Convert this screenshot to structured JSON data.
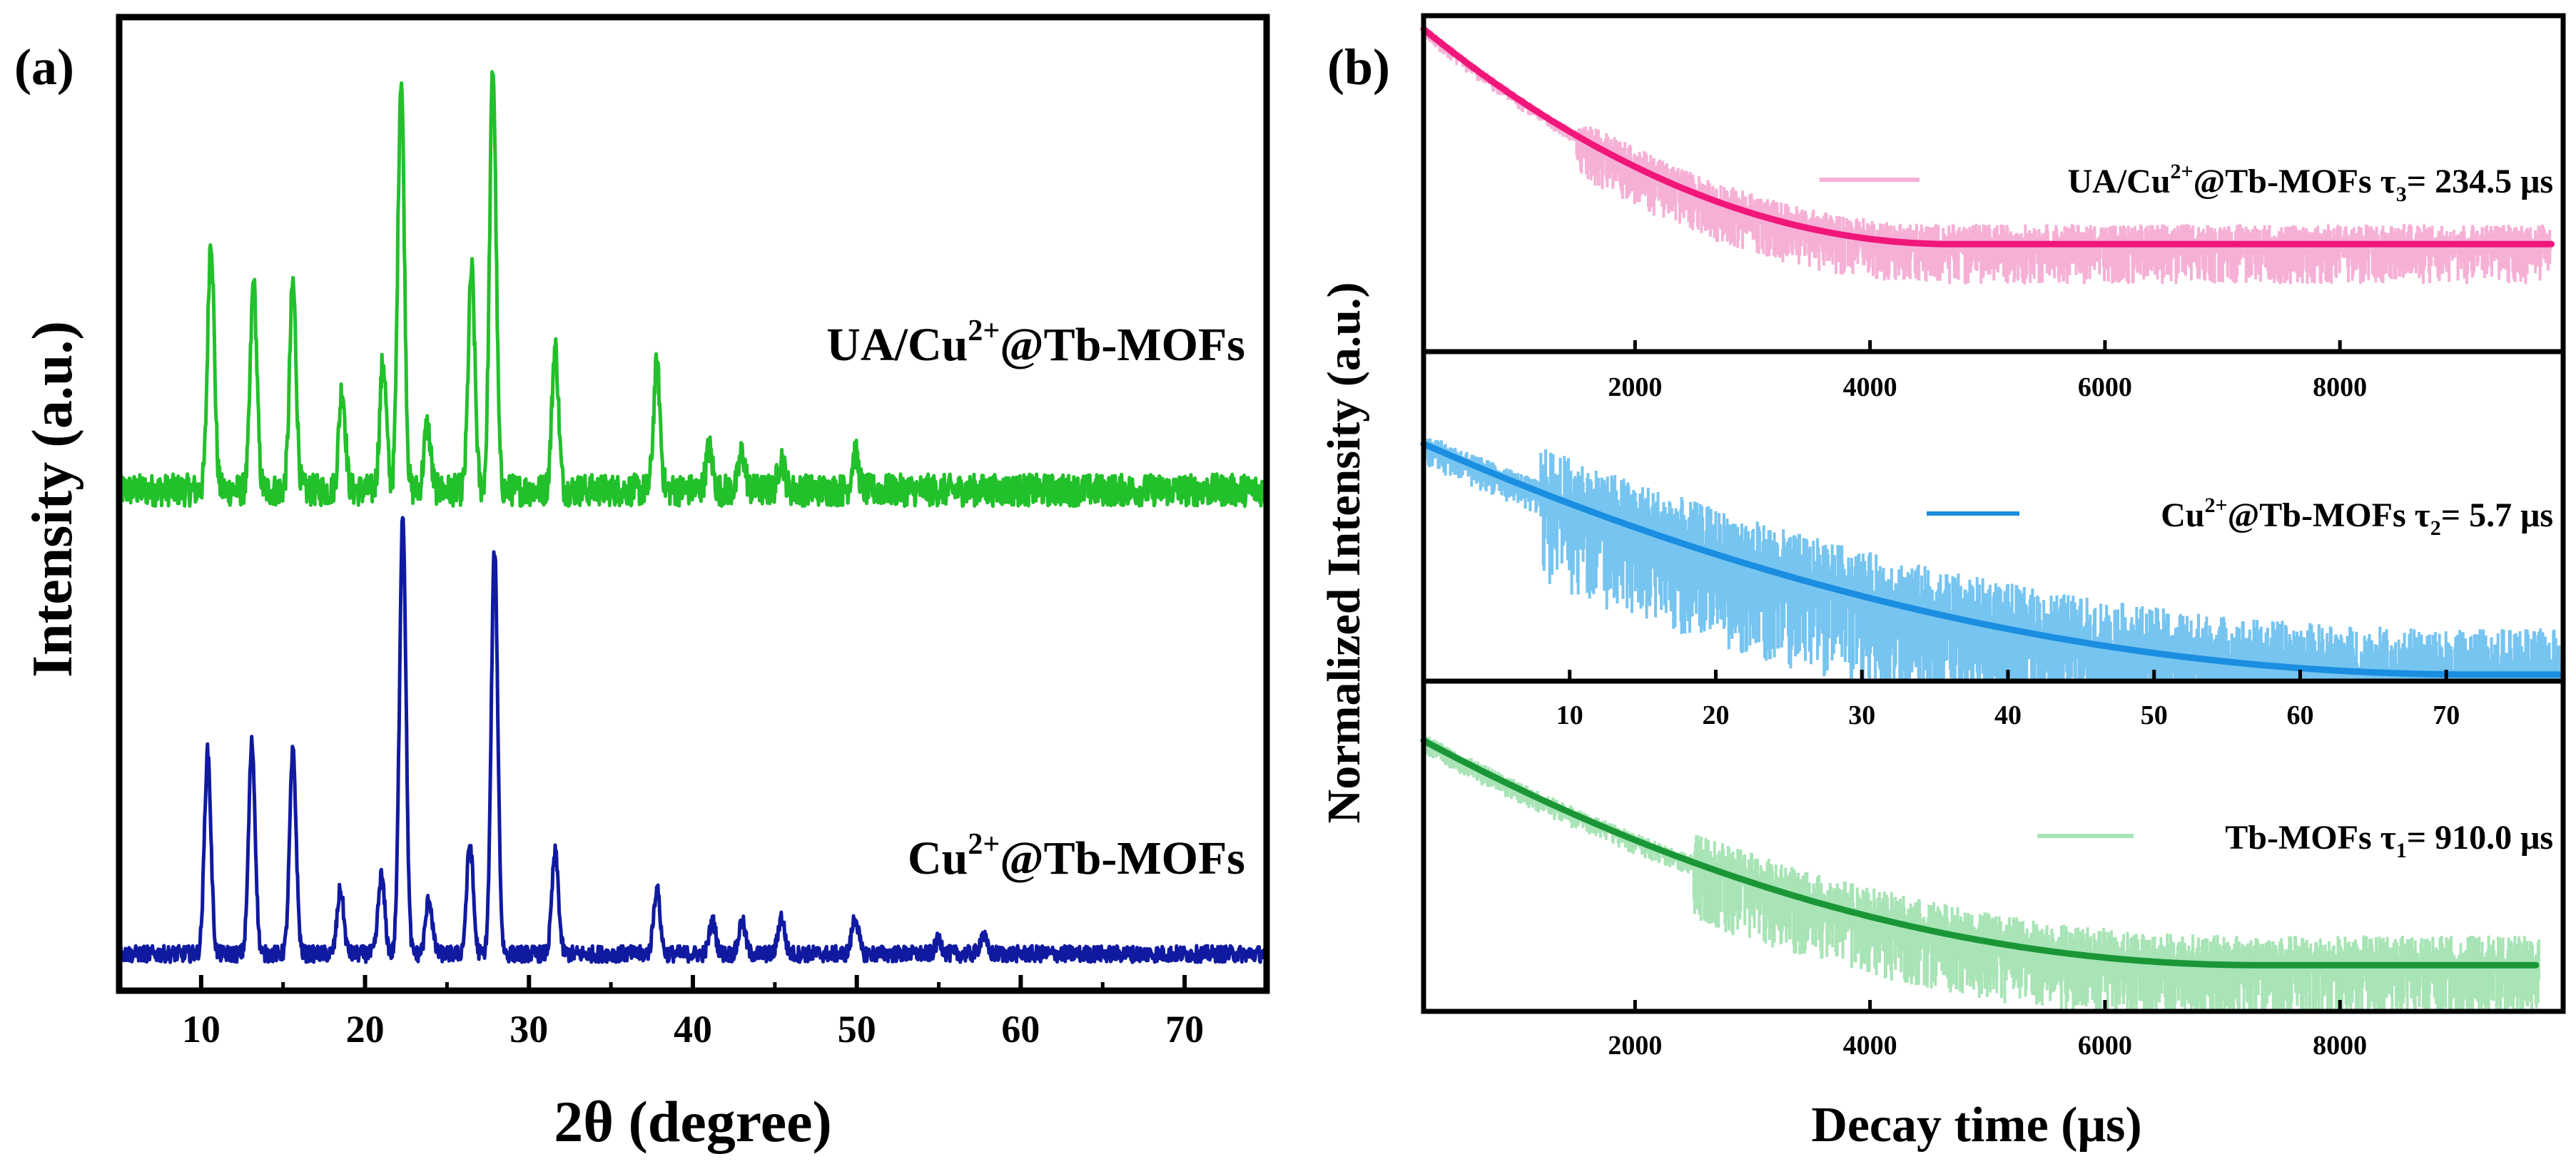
{
  "chart_data": [
    {
      "type": "line",
      "panel_label": "(a)",
      "xlabel": "2θ (degree)",
      "ylabel": "Intensity (a.u.)",
      "xlim": [
        5,
        75
      ],
      "ylim": [
        0,
        2.12
      ],
      "xticks": [
        10,
        20,
        30,
        40,
        50,
        60,
        70
      ],
      "series": [
        {
          "name": "UA/Cu2+@Tb-MOFs",
          "name_parts": {
            "pre": "UA/Cu",
            "sup": "2+",
            "post": "@Tb-MOFs"
          },
          "color": "#22c02a",
          "baseline": 1.09,
          "noise": 0.035,
          "peaks": [
            {
              "x": 10.6,
              "h": 0.55
            },
            {
              "x": 13.2,
              "h": 0.45
            },
            {
              "x": 15.6,
              "h": 0.45
            },
            {
              "x": 18.6,
              "h": 0.22
            },
            {
              "x": 21.1,
              "h": 0.28
            },
            {
              "x": 22.2,
              "h": 0.9
            },
            {
              "x": 23.8,
              "h": 0.14
            },
            {
              "x": 26.5,
              "h": 0.48
            },
            {
              "x": 27.8,
              "h": 0.92
            },
            {
              "x": 31.6,
              "h": 0.31
            },
            {
              "x": 37.8,
              "h": 0.27
            },
            {
              "x": 41.0,
              "h": 0.09
            },
            {
              "x": 43.0,
              "h": 0.08
            },
            {
              "x": 45.4,
              "h": 0.07
            },
            {
              "x": 49.9,
              "h": 0.08
            }
          ]
        },
        {
          "name": "Cu2+@Tb-MOFs",
          "name_parts": {
            "pre": "Cu",
            "sup": "2+",
            "post": "@Tb-MOFs"
          },
          "color": "#101aa0",
          "baseline": 0.08,
          "noise": 0.018,
          "peaks": [
            {
              "x": 10.4,
              "h": 0.44
            },
            {
              "x": 13.1,
              "h": 0.46
            },
            {
              "x": 15.6,
              "h": 0.44
            },
            {
              "x": 18.5,
              "h": 0.14
            },
            {
              "x": 21.0,
              "h": 0.17
            },
            {
              "x": 22.3,
              "h": 0.96
            },
            {
              "x": 23.9,
              "h": 0.12
            },
            {
              "x": 26.4,
              "h": 0.24
            },
            {
              "x": 27.9,
              "h": 0.88
            },
            {
              "x": 31.6,
              "h": 0.22
            },
            {
              "x": 37.8,
              "h": 0.14
            },
            {
              "x": 41.2,
              "h": 0.07
            },
            {
              "x": 43.0,
              "h": 0.07
            },
            {
              "x": 45.4,
              "h": 0.08
            },
            {
              "x": 49.9,
              "h": 0.08
            },
            {
              "x": 55.0,
              "h": 0.03
            },
            {
              "x": 57.7,
              "h": 0.04
            }
          ]
        }
      ]
    },
    {
      "type": "line",
      "panel_label": "(b)",
      "xlabel": "Decay time (μs)",
      "ylabel": "Normalized Intensity (a.u.)",
      "subplots": [
        {
          "xlim": [
            200,
            9900
          ],
          "ylim": [
            0,
            1
          ],
          "xticks": [
            2000,
            4000,
            6000,
            8000
          ],
          "tick_labels_below": false,
          "label_parts": {
            "pre": "UA/Cu",
            "sup": "2+",
            "post": "@Tb-MOFs τ",
            "sub": "3",
            "post2": "= 234.5 μs"
          },
          "raw_color": "#f6b0d6",
          "fit_color": "#f0167a",
          "fit": {
            "x_end": 4700,
            "y_start": 0.96,
            "y_end": 0.32
          },
          "noise_amp": 0.12,
          "noise_start": 1500,
          "x_end": 9800
        },
        {
          "xlim": [
            0,
            78
          ],
          "ylim": [
            0,
            1
          ],
          "xticks": [
            10,
            20,
            30,
            40,
            50,
            60,
            70
          ],
          "tick_labels_below": true,
          "label_parts": {
            "pre": "Cu",
            "sup": "2+",
            "post": "@Tb-MOFs τ",
            "sub": "2",
            "post2": "= 5.7 μs"
          },
          "raw_color": "#76c4f0",
          "fit_color": "#1a8ee0",
          "fit": {
            "x_end": 72,
            "y_start": 0.72,
            "y_end": 0.02
          },
          "noise_amp": 0.28,
          "noise_start": 8,
          "x_end": 78
        },
        {
          "xlim": [
            200,
            9900
          ],
          "ylim": [
            0,
            1
          ],
          "xticks": [
            2000,
            4000,
            6000,
            8000
          ],
          "tick_labels_below": true,
          "label_parts": {
            "pre": "Tb-MOFs τ",
            "sup": "",
            "post": "",
            "sub": "1",
            "post2": "= 910.0 μs"
          },
          "raw_color": "#a8e4b6",
          "fit_color": "#1a9636",
          "fit": {
            "x_end": 7300,
            "y_start": 0.82,
            "y_end": 0.14
          },
          "noise_amp": 0.18,
          "noise_start": 2500,
          "x_end": 9700
        }
      ]
    }
  ]
}
